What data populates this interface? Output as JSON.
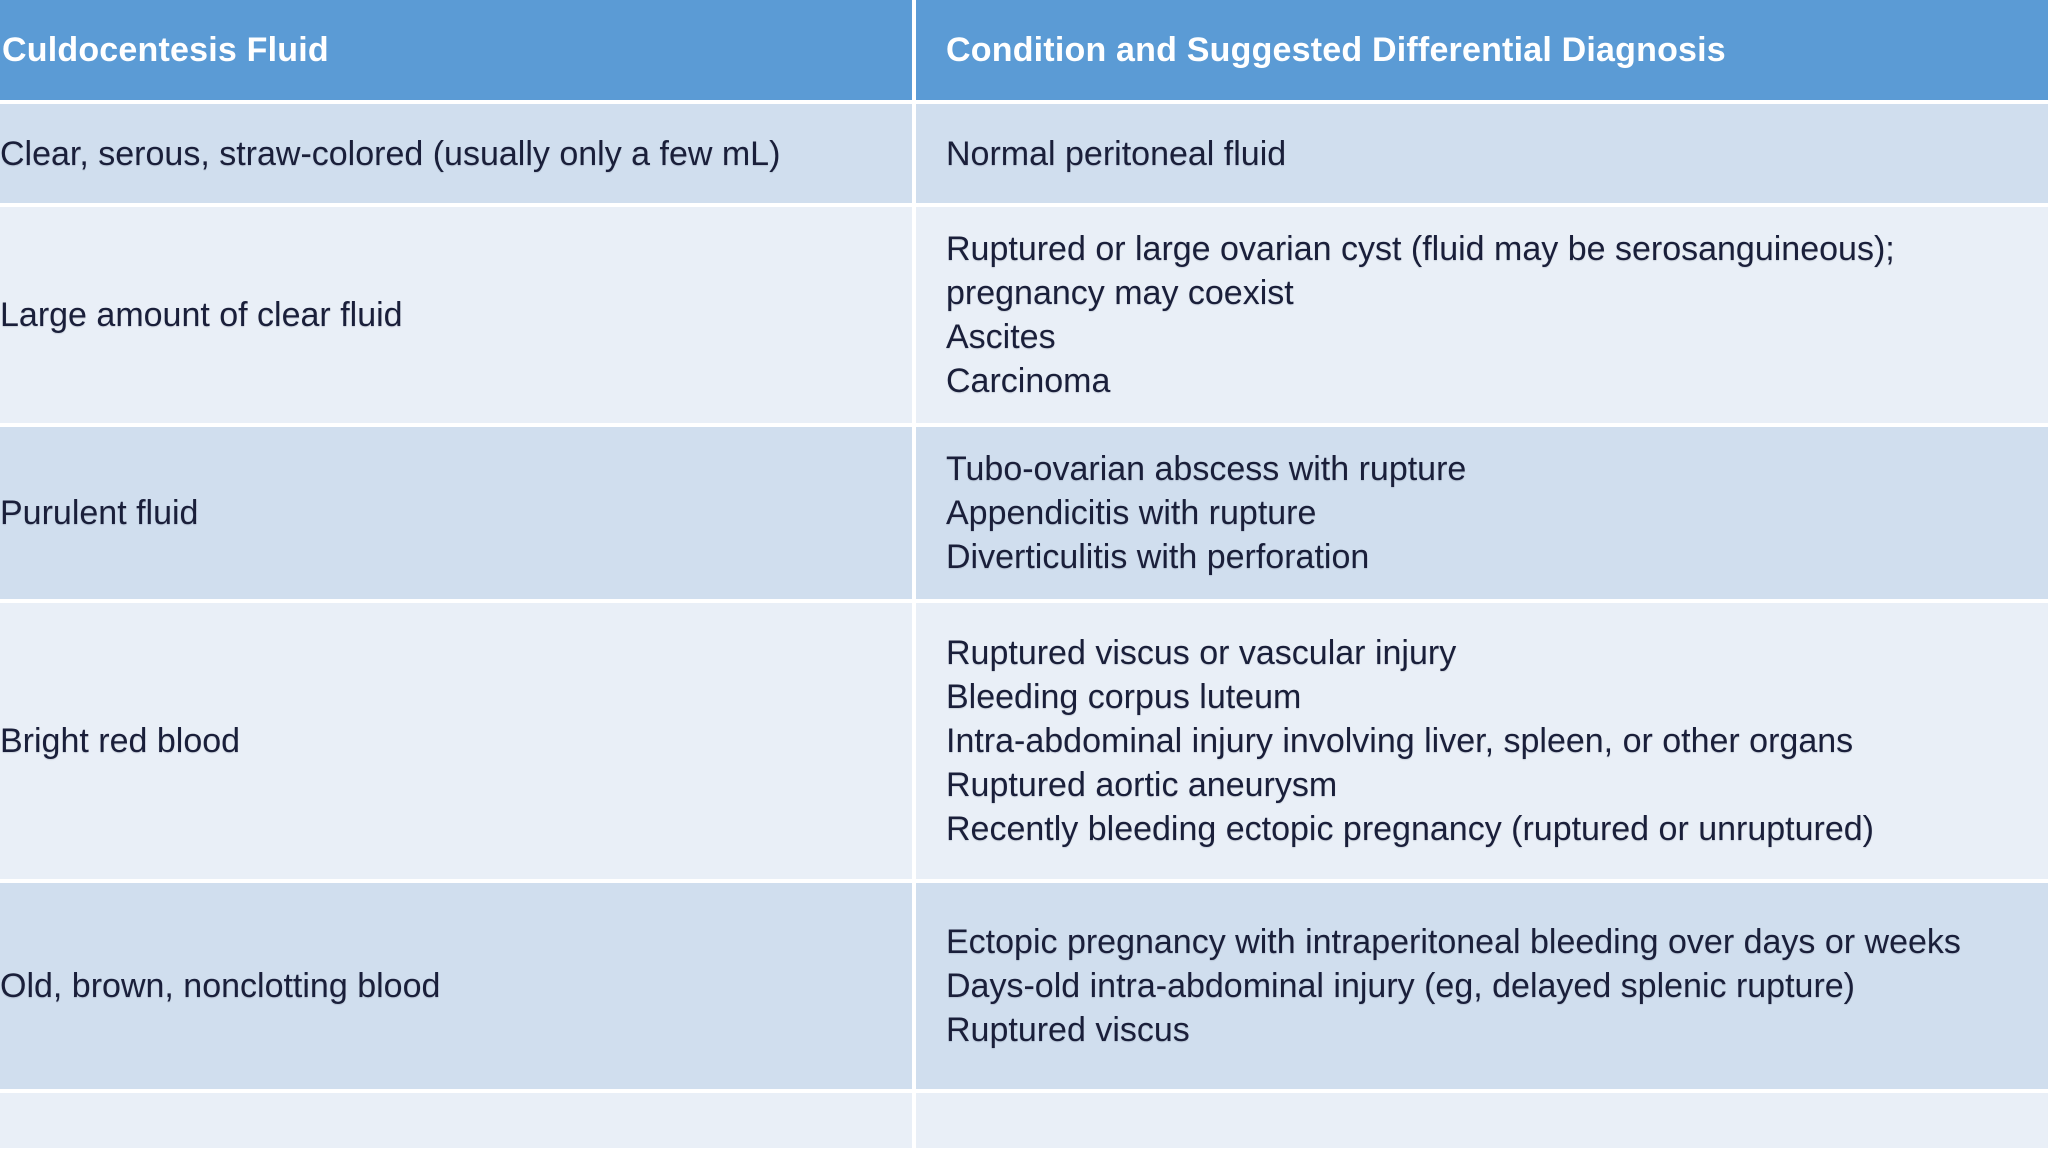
{
  "header": {
    "col1": "Culdocentesis Fluid",
    "col2": "Condition and Suggested Differential Diagnosis"
  },
  "rows": [
    {
      "fluid": "Clear, serous, straw-colored (usually only a few mL)",
      "conditions": [
        "Normal peritoneal fluid"
      ]
    },
    {
      "fluid": "Large amount of clear fluid",
      "conditions": [
        "Ruptured or large ovarian cyst (fluid may be serosanguineous);",
        "pregnancy may coexist",
        "Ascites",
        "Carcinoma"
      ]
    },
    {
      "fluid": "Purulent fluid",
      "conditions": [
        "Tubo-ovarian abscess with rupture",
        "Appendicitis with rupture",
        "Diverticulitis with perforation"
      ]
    },
    {
      "fluid": "Bright red blood",
      "conditions": [
        "Ruptured viscus or vascular injury",
        "Bleeding corpus luteum",
        "Intra-abdominal injury involving liver, spleen, or other organs",
        "Ruptured aortic aneurysm",
        "Recently bleeding ectopic pregnancy (ruptured or unruptured)"
      ]
    },
    {
      "fluid": "Old, brown, nonclotting blood",
      "conditions": [
        "Ectopic pregnancy with intraperitoneal bleeding over days or weeks",
        "Days-old intra-abdominal injury (eg, delayed splenic rupture)",
        "Ruptured viscus"
      ]
    },
    {
      "fluid": "",
      "conditions": []
    }
  ],
  "colors": {
    "header_bg": "#5b9bd5",
    "row_dark": "#d0deee",
    "row_light": "#e9eff7",
    "text": "#1a1f3a"
  }
}
